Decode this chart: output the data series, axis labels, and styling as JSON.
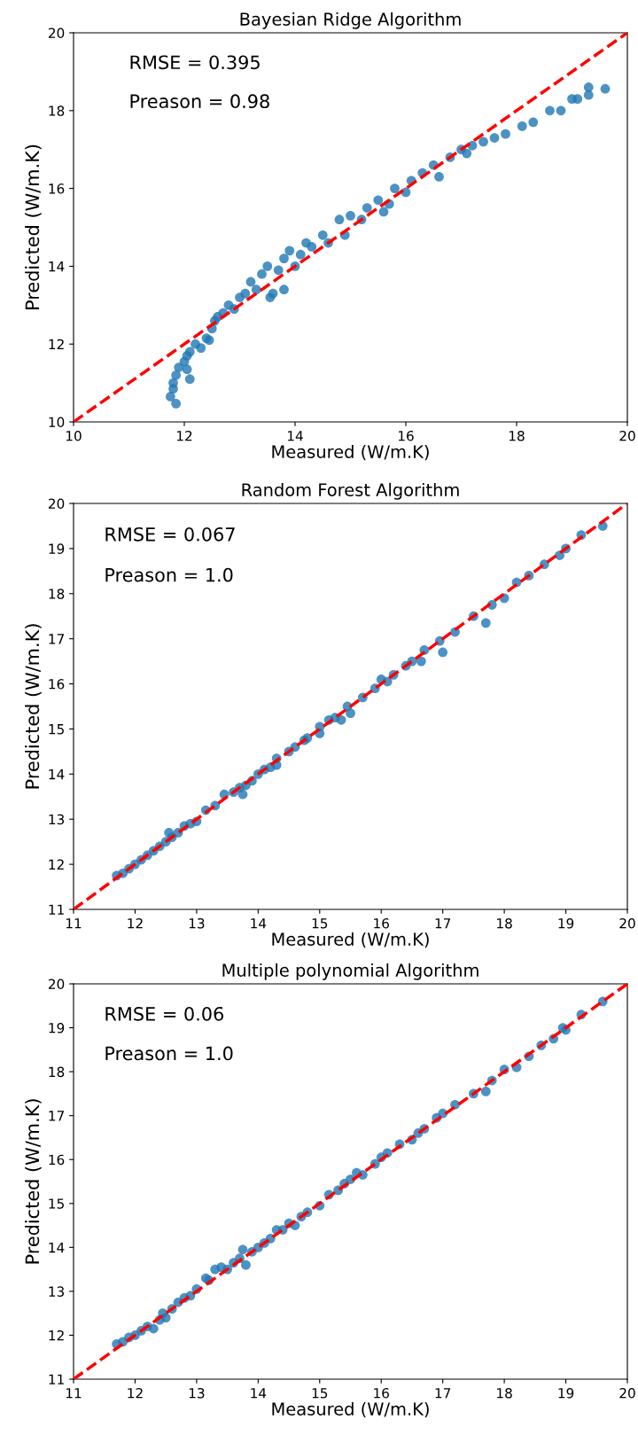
{
  "chart_data": [
    {
      "type": "scatter",
      "title": "Bayesian Ridge Algorithm",
      "xlabel": "Measured (W/m.K)",
      "ylabel": "Predicted (W/m.K)",
      "xlim": [
        10,
        20
      ],
      "ylim": [
        10,
        20
      ],
      "xticks": [
        10,
        12,
        14,
        16,
        18,
        20
      ],
      "yticks": [
        10,
        12,
        14,
        16,
        18,
        20
      ],
      "grid": false,
      "marker": "circle",
      "annotations": [
        "RMSE = 0.395",
        "Preason = 0.98"
      ],
      "series": [
        {
          "color": "#1f77b4",
          "x": [
            11.75,
            11.8,
            11.8,
            11.85,
            11.9,
            11.85,
            12.0,
            12.05,
            12.05,
            12.1,
            12.1,
            12.2,
            12.3,
            12.4,
            12.45,
            12.5,
            12.55,
            12.6,
            12.7,
            12.8,
            12.9,
            13.0,
            13.1,
            13.2,
            13.3,
            13.4,
            13.5,
            13.55,
            13.6,
            13.7,
            13.8,
            13.8,
            13.9,
            14.0,
            14.1,
            14.2,
            14.3,
            14.5,
            14.6,
            14.8,
            14.9,
            15.0,
            15.2,
            15.3,
            15.5,
            15.6,
            15.7,
            15.8,
            16.0,
            16.1,
            16.3,
            16.5,
            16.6,
            16.8,
            17.0,
            17.1,
            17.2,
            17.4,
            17.6,
            17.8,
            18.1,
            18.3,
            18.6,
            18.8,
            19.0,
            19.1,
            19.3,
            19.3,
            19.6
          ],
          "values": [
            10.65,
            10.85,
            11.0,
            11.2,
            11.4,
            10.47,
            11.55,
            11.7,
            11.35,
            11.1,
            11.8,
            12.0,
            11.9,
            12.15,
            12.1,
            12.4,
            12.6,
            12.7,
            12.8,
            13.0,
            12.9,
            13.2,
            13.3,
            13.6,
            13.4,
            13.8,
            14.0,
            13.2,
            13.3,
            13.9,
            13.4,
            14.2,
            14.4,
            14.0,
            14.3,
            14.6,
            14.5,
            14.8,
            14.6,
            15.2,
            14.8,
            15.3,
            15.2,
            15.5,
            15.7,
            15.4,
            15.6,
            16.0,
            15.9,
            16.2,
            16.4,
            16.6,
            16.3,
            16.8,
            17.0,
            16.9,
            17.1,
            17.2,
            17.3,
            17.4,
            17.6,
            17.7,
            18.0,
            18.0,
            18.3,
            18.3,
            18.6,
            18.4,
            18.56
          ]
        },
        {
          "type": "line",
          "color": "#ff0000",
          "line_style": "dashed",
          "marker": "none",
          "x": [
            10,
            20
          ],
          "values": [
            10,
            20
          ]
        }
      ]
    },
    {
      "type": "scatter",
      "title": "Random Forest Algorithm",
      "xlabel": "Measured (W/m.K)",
      "ylabel": "Predicted (W/m.K)",
      "xlim": [
        11,
        20
      ],
      "ylim": [
        11,
        20
      ],
      "xticks": [
        11,
        12,
        13,
        14,
        15,
        16,
        17,
        18,
        19,
        20
      ],
      "yticks": [
        11,
        12,
        13,
        14,
        15,
        16,
        17,
        18,
        19,
        20
      ],
      "grid": false,
      "marker": "circle",
      "annotations": [
        "RMSE = 0.067",
        "Preason = 1.0"
      ],
      "series": [
        {
          "color": "#1f77b4",
          "x": [
            11.7,
            11.8,
            11.9,
            12.0,
            12.1,
            12.2,
            12.3,
            12.4,
            12.5,
            12.55,
            12.6,
            12.7,
            12.8,
            12.9,
            13.0,
            13.15,
            13.3,
            13.45,
            13.6,
            13.7,
            13.75,
            13.8,
            13.9,
            14.0,
            14.1,
            14.2,
            14.3,
            14.3,
            14.5,
            14.6,
            14.75,
            14.8,
            15.0,
            15.0,
            15.15,
            15.25,
            15.35,
            15.45,
            15.5,
            15.7,
            15.9,
            16.0,
            16.1,
            16.2,
            16.4,
            16.5,
            16.65,
            16.7,
            16.95,
            17.0,
            17.2,
            17.5,
            17.7,
            17.8,
            18.0,
            18.2,
            18.4,
            18.65,
            18.9,
            19.0,
            19.25,
            19.6
          ],
          "values": [
            11.75,
            11.8,
            11.9,
            12.0,
            12.1,
            12.2,
            12.3,
            12.4,
            12.5,
            12.7,
            12.6,
            12.7,
            12.85,
            12.9,
            12.95,
            13.2,
            13.3,
            13.55,
            13.6,
            13.7,
            13.55,
            13.75,
            13.85,
            14.0,
            14.1,
            14.15,
            14.2,
            14.35,
            14.5,
            14.6,
            14.75,
            14.8,
            15.05,
            14.9,
            15.2,
            15.25,
            15.2,
            15.5,
            15.35,
            15.7,
            15.9,
            16.1,
            16.05,
            16.2,
            16.4,
            16.5,
            16.5,
            16.75,
            16.95,
            16.7,
            17.15,
            17.5,
            17.35,
            17.75,
            17.9,
            18.25,
            18.4,
            18.65,
            18.85,
            19.0,
            19.3,
            19.5
          ]
        },
        {
          "type": "line",
          "color": "#ff0000",
          "line_style": "dashed",
          "marker": "none",
          "x": [
            11,
            20
          ],
          "values": [
            11,
            20
          ]
        }
      ]
    },
    {
      "type": "scatter",
      "title": "Multiple polynomial Algorithm",
      "xlabel": "Measured (W/m.K)",
      "ylabel": "Predicted (W/m.K)",
      "xlim": [
        11,
        20
      ],
      "ylim": [
        11,
        20
      ],
      "xticks": [
        11,
        12,
        13,
        14,
        15,
        16,
        17,
        18,
        19,
        20
      ],
      "yticks": [
        11,
        12,
        13,
        14,
        15,
        16,
        17,
        18,
        19,
        20
      ],
      "grid": false,
      "marker": "circle",
      "annotations": [
        "RMSE = 0.06",
        "Preason = 1.0"
      ],
      "series": [
        {
          "color": "#1f77b4",
          "x": [
            11.7,
            11.8,
            11.9,
            12.0,
            12.1,
            12.2,
            12.3,
            12.4,
            12.45,
            12.5,
            12.6,
            12.7,
            12.8,
            12.9,
            13.0,
            13.15,
            13.2,
            13.3,
            13.4,
            13.5,
            13.6,
            13.7,
            13.75,
            13.8,
            13.9,
            14.0,
            14.1,
            14.2,
            14.3,
            14.4,
            14.5,
            14.6,
            14.7,
            14.8,
            15.0,
            15.15,
            15.3,
            15.4,
            15.5,
            15.6,
            15.7,
            15.9,
            16.0,
            16.1,
            16.3,
            16.5,
            16.6,
            16.7,
            16.9,
            17.0,
            17.2,
            17.5,
            17.7,
            17.8,
            18.0,
            18.2,
            18.4,
            18.6,
            18.8,
            18.95,
            19.0,
            19.25,
            19.6
          ],
          "values": [
            11.8,
            11.85,
            11.95,
            12.0,
            12.1,
            12.2,
            12.15,
            12.35,
            12.5,
            12.4,
            12.6,
            12.75,
            12.85,
            12.9,
            13.05,
            13.3,
            13.25,
            13.5,
            13.55,
            13.5,
            13.65,
            13.75,
            13.95,
            13.6,
            13.9,
            14.0,
            14.1,
            14.2,
            14.4,
            14.4,
            14.55,
            14.5,
            14.7,
            14.8,
            14.95,
            15.2,
            15.3,
            15.45,
            15.55,
            15.7,
            15.65,
            15.9,
            16.05,
            16.15,
            16.35,
            16.45,
            16.6,
            16.7,
            16.95,
            17.05,
            17.25,
            17.5,
            17.55,
            17.8,
            18.05,
            18.1,
            18.35,
            18.6,
            18.75,
            19.0,
            18.95,
            19.3,
            19.6
          ]
        },
        {
          "type": "line",
          "color": "#ff0000",
          "line_style": "dashed",
          "marker": "none",
          "x": [
            11,
            20
          ],
          "values": [
            11,
            20
          ]
        }
      ]
    }
  ]
}
